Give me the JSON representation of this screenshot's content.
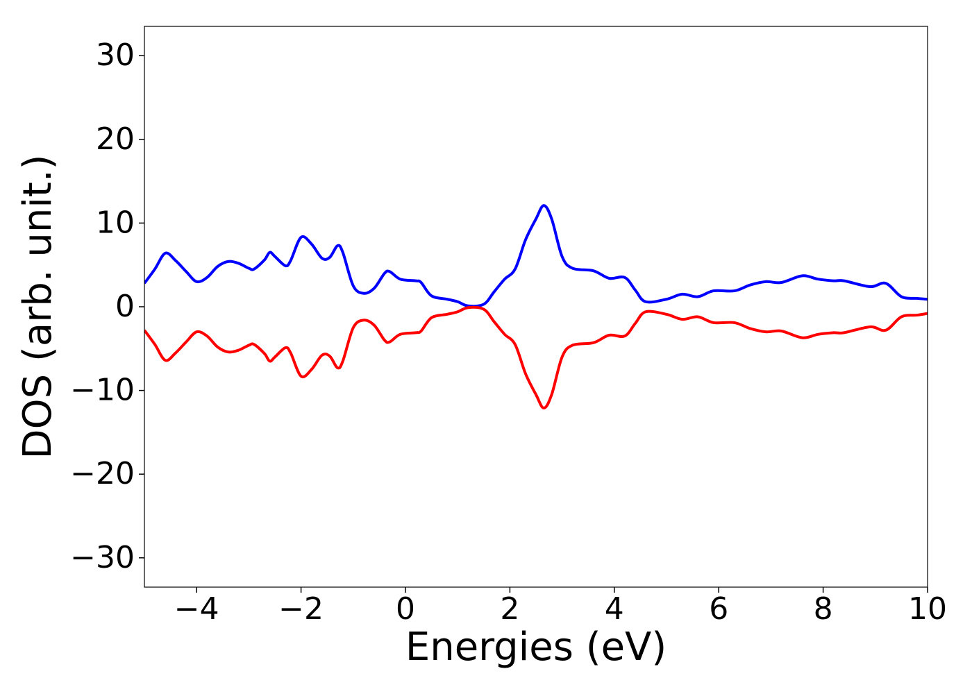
{
  "chart_data": {
    "type": "line",
    "x_label": "Energies (eV)",
    "y_label": "DOS (arb. unit.)",
    "x": [
      -5,
      -4.8,
      -4.6,
      -4.4,
      -4.2,
      -4.0,
      -3.8,
      -3.6,
      -3.4,
      -3.2,
      -3.0,
      -2.9,
      -2.7,
      -2.6,
      -2.5,
      -2.3,
      -2.2,
      -2.0,
      -1.8,
      -1.6,
      -1.45,
      -1.3,
      -1.2,
      -1.0,
      -0.8,
      -0.6,
      -0.4,
      -0.3,
      -0.1,
      0.2,
      0.3,
      0.5,
      0.8,
      1.0,
      1.2,
      1.5,
      1.7,
      1.9,
      2.1,
      2.3,
      2.5,
      2.65,
      2.8,
      3.0,
      3.2,
      3.6,
      3.9,
      4.2,
      4.4,
      4.6,
      5.0,
      5.3,
      5.6,
      5.9,
      6.3,
      6.6,
      6.9,
      7.2,
      7.6,
      7.9,
      8.2,
      8.4,
      8.9,
      9.2,
      9.5,
      9.8,
      10
    ],
    "series": [
      {
        "color": "#0000ff",
        "values": [
          2.8,
          4.5,
          6.4,
          5.5,
          4.2,
          3.0,
          3.5,
          4.8,
          5.4,
          5.2,
          4.6,
          4.5,
          5.6,
          6.5,
          6.0,
          4.9,
          5.5,
          8.3,
          7.5,
          5.8,
          5.9,
          7.3,
          6.5,
          2.5,
          1.6,
          2.2,
          4.0,
          4.2,
          3.3,
          3.1,
          2.9,
          1.3,
          0.9,
          0.6,
          0.1,
          0.3,
          1.8,
          3.3,
          4.5,
          8.0,
          10.5,
          12.1,
          10.5,
          6.0,
          4.6,
          4.3,
          3.4,
          3.5,
          2.0,
          0.6,
          0.9,
          1.5,
          1.2,
          1.9,
          1.9,
          2.6,
          3.0,
          2.9,
          3.7,
          3.3,
          3.1,
          3.1,
          2.4,
          2.8,
          1.2,
          1.0,
          0.9
        ]
      },
      {
        "color": "#ff0000",
        "values": [
          -2.8,
          -4.5,
          -6.4,
          -5.5,
          -4.2,
          -3.0,
          -3.5,
          -4.8,
          -5.4,
          -5.2,
          -4.6,
          -4.5,
          -5.6,
          -6.5,
          -6.0,
          -4.9,
          -5.5,
          -8.3,
          -7.5,
          -5.8,
          -5.9,
          -7.3,
          -6.5,
          -2.5,
          -1.6,
          -2.2,
          -4.0,
          -4.2,
          -3.3,
          -3.1,
          -2.9,
          -1.3,
          -0.9,
          -0.6,
          -0.1,
          -0.3,
          -1.8,
          -3.3,
          -4.5,
          -8.0,
          -10.5,
          -12.1,
          -10.5,
          -6.0,
          -4.6,
          -4.3,
          -3.4,
          -3.5,
          -2.0,
          -0.6,
          -0.9,
          -1.5,
          -1.2,
          -1.9,
          -1.9,
          -2.6,
          -3.0,
          -2.9,
          -3.7,
          -3.3,
          -3.1,
          -3.1,
          -2.4,
          -2.8,
          -1.2,
          -1.0,
          -0.8
        ]
      }
    ],
    "xlim": [
      -5,
      10
    ],
    "xticks": [
      {
        "value": -4,
        "label": "−4"
      },
      {
        "value": -2,
        "label": "−2"
      },
      0,
      2,
      4,
      6,
      8,
      10
    ],
    "ylim": [
      -33.5,
      33.5
    ],
    "yticks": [
      {
        "value": -30,
        "label": "−30"
      },
      {
        "value": -20,
        "label": "−20"
      },
      {
        "value": -10,
        "label": "−10"
      },
      0,
      10,
      20,
      30
    ],
    "grid": false
  }
}
